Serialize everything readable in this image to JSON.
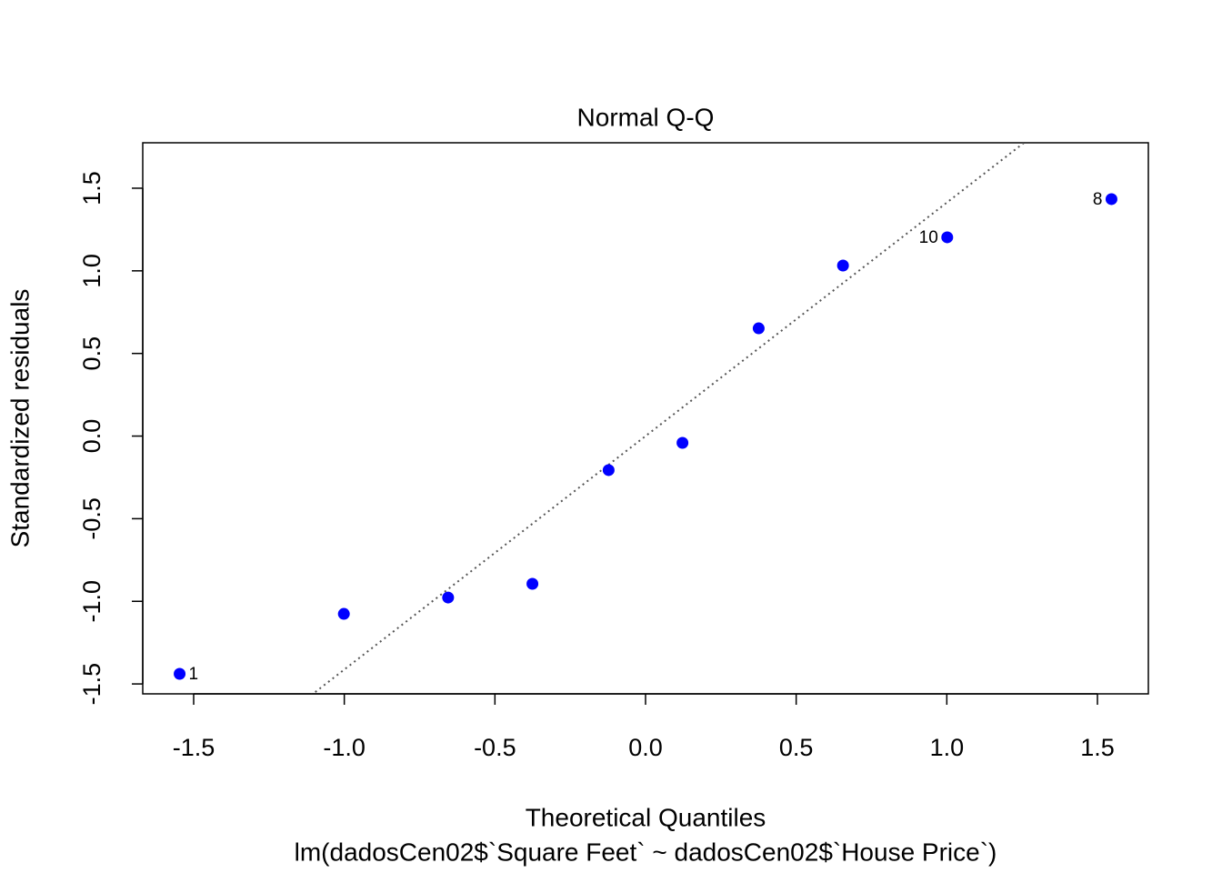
{
  "chart_data": {
    "type": "scatter",
    "title": "Normal Q-Q",
    "x_label": "Theoretical Quantiles",
    "subtitle": "lm(dadosCen02$`Square Feet` ~ dadosCen02$`House Price`)",
    "y_label": "Standardized residuals",
    "x": [
      -1.5466,
      -1.0014,
      -0.6554,
      -0.3755,
      -0.1226,
      0.1226,
      0.3755,
      0.6554,
      1.0014,
      1.5466
    ],
    "values": [
      -1.439,
      -1.076,
      -0.977,
      -0.894,
      -0.206,
      -0.041,
      0.652,
      1.032,
      1.203,
      1.434
    ],
    "point_labels": [
      "1",
      null,
      null,
      null,
      null,
      null,
      null,
      null,
      "10",
      "8"
    ],
    "color": "#0000ff",
    "reference_line": {
      "slope": 1.413,
      "intercept": 0,
      "color": "#555555"
    },
    "xlim": [
      -1.669,
      1.669
    ],
    "ylim": [
      -1.56,
      1.775
    ],
    "xticks": [
      -1.5,
      {
        "value": -1,
        "label": "-1.0"
      },
      -0.5,
      {
        "value": 0,
        "label": "0.0"
      },
      0.5,
      {
        "value": 1,
        "label": "1.0"
      },
      1.5
    ],
    "yticks": [
      -1.5,
      {
        "value": -1,
        "label": "-1.0"
      },
      -0.5,
      {
        "value": 0,
        "label": "0.0"
      },
      0.5,
      {
        "value": 1,
        "label": "1.0"
      },
      1.5
    ],
    "grid": false
  }
}
